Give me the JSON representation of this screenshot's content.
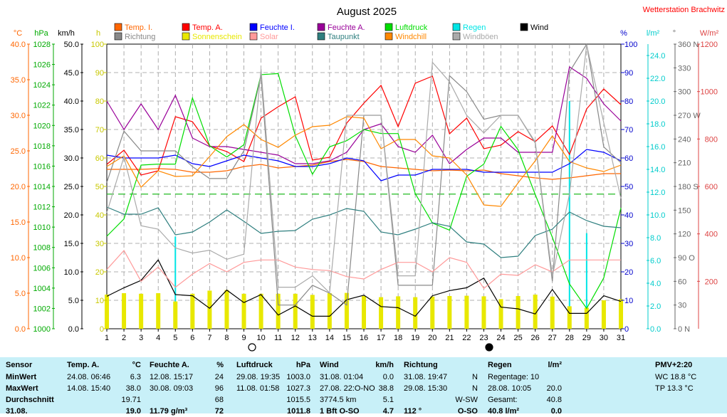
{
  "title": "August 2025",
  "station": "Wetterstation Brachwitz",
  "legend": [
    {
      "label": "Temp. I.",
      "color": "#ff6600",
      "kind": "box"
    },
    {
      "label": "Temp. A.",
      "color": "#ff0000",
      "kind": "box"
    },
    {
      "label": "Feuchte I.",
      "color": "#0000ff",
      "kind": "box"
    },
    {
      "label": "Feuchte A.",
      "color": "#990099",
      "kind": "box"
    },
    {
      "label": "Luftdruck",
      "color": "#00dd00",
      "kind": "box"
    },
    {
      "label": "Regen",
      "color": "#00e5e5",
      "kind": "box"
    },
    {
      "label": "Wind",
      "color": "#000000",
      "kind": "box"
    },
    {
      "label": "Richtung",
      "color": "#888888",
      "kind": "box"
    },
    {
      "label": "Sonnenschein",
      "color": "#e8e800",
      "kind": "box"
    },
    {
      "label": "Solar",
      "color": "#ff9999",
      "kind": "box"
    },
    {
      "label": "Taupunkt",
      "color": "#2f7f7f",
      "kind": "box"
    },
    {
      "label": "Windchill",
      "color": "#ff8800",
      "kind": "box"
    },
    {
      "label": "Windböen",
      "color": "#aaaaaa",
      "kind": "box"
    }
  ],
  "axes": {
    "temp": {
      "unit": "°C",
      "ticks": [
        "40.0",
        "35.0",
        "30.0",
        "25.0",
        "20.0",
        "15.0",
        "10.0",
        "5.0",
        "0.0"
      ],
      "color": "#ff6600",
      "min": 0,
      "max": 40
    },
    "pressure": {
      "unit": "hPa",
      "ticks": [
        "1028",
        "1026",
        "1024",
        "1022",
        "1020",
        "1018",
        "1016",
        "1014",
        "1012",
        "1010",
        "1008",
        "1006",
        "1004",
        "1002",
        "1000"
      ],
      "color": "#00aa00",
      "min": 1000,
      "max": 1028
    },
    "wind": {
      "unit": "km/h",
      "ticks": [
        "50.0",
        "45.0",
        "40.0",
        "35.0",
        "30.0",
        "25.0",
        "20.0",
        "15.0",
        "10.0",
        "5.0",
        "0.0"
      ],
      "color": "#000000",
      "min": 0,
      "max": 50
    },
    "sun": {
      "unit": "h",
      "ticks": [
        "100",
        "90",
        "80",
        "70",
        "60",
        "50",
        "40",
        "30",
        "20",
        "10",
        "0"
      ],
      "color": "#d0d000",
      "min": 0,
      "max": 100
    },
    "humidity": {
      "unit": "%",
      "ticks": [
        "100",
        "90",
        "80",
        "70",
        "60",
        "50",
        "40",
        "30",
        "20",
        "10",
        "0"
      ],
      "color": "#0000cc",
      "min": 0,
      "max": 100
    },
    "rain": {
      "unit": "l/m²",
      "ticks": [
        "24.0",
        "22.0",
        "20.0",
        "18.0",
        "16.0",
        "14.0",
        "12.0",
        "10.0",
        "8.0",
        "6.0",
        "4.0",
        "2.0",
        "0.0"
      ],
      "color": "#00cccc",
      "min": 0,
      "max": 25
    },
    "direction": {
      "unit": "°",
      "ticks": [
        "360 N",
        "330",
        "300",
        "270 W",
        "240",
        "210",
        "180 S",
        "150",
        "120",
        "90 O",
        "60",
        "30",
        "0 N"
      ],
      "color": "#666666",
      "min": 0,
      "max": 360
    },
    "solar": {
      "unit": "W/m²",
      "ticks": [
        "1200",
        "1000",
        "800",
        "600",
        "400",
        "200"
      ],
      "color": "#dd4444",
      "min": 0,
      "max": 1200
    }
  },
  "days": [
    "1",
    "2",
    "3",
    "4",
    "5",
    "6",
    "7",
    "8",
    "9",
    "10",
    "11",
    "12",
    "13",
    "14",
    "15",
    "16",
    "17",
    "18",
    "19",
    "20",
    "21",
    "22",
    "23",
    "24",
    "25",
    "26",
    "27",
    "28",
    "29",
    "30",
    "31"
  ],
  "chart_data": {
    "type": "line",
    "title": "August 2025",
    "x": [
      1,
      2,
      3,
      4,
      5,
      6,
      7,
      8,
      9,
      10,
      11,
      12,
      13,
      14,
      15,
      16,
      17,
      18,
      19,
      20,
      21,
      22,
      23,
      24,
      25,
      26,
      27,
      28,
      29,
      30,
      31
    ],
    "xlim": [
      1,
      31
    ],
    "reference_line_pressure": 1013.25,
    "series": [
      {
        "name": "Temp. I.",
        "axis": "temp",
        "color": "#ff6600",
        "values": [
          22.4,
          22.4,
          22.4,
          22.5,
          22.4,
          22.0,
          22.0,
          22.2,
          22.8,
          23.1,
          22.6,
          22.8,
          23.0,
          23.5,
          23.8,
          23.5,
          22.8,
          22.6,
          22.4,
          22.2,
          22.3,
          22.2,
          22.3,
          21.8,
          21.5,
          21.2,
          21.0,
          21.2,
          21.5,
          21.8,
          21.8
        ]
      },
      {
        "name": "Temp. A.",
        "axis": "temp",
        "color": "#ff0000",
        "values": [
          23.1,
          25.1,
          21.6,
          22.2,
          29.8,
          29.1,
          25.7,
          24.9,
          23.5,
          29.6,
          31.2,
          32.6,
          23.7,
          24.1,
          28.9,
          31.7,
          34.2,
          28.4,
          34.5,
          35.5,
          27.4,
          29.6,
          25.3,
          25.8,
          27.7,
          26.3,
          28.5,
          24.5,
          30.9,
          33.7,
          31.5
        ]
      },
      {
        "name": "Feuchte I.",
        "axis": "humidity",
        "color": "#0000ff",
        "values": [
          61,
          60,
          60,
          60,
          61,
          58,
          57,
          59,
          61,
          60,
          59,
          57,
          57,
          58,
          60,
          59,
          52,
          54,
          54,
          56,
          56,
          56,
          55,
          55,
          55,
          55,
          55,
          58,
          63,
          62,
          59
        ]
      },
      {
        "name": "Feuchte A.",
        "axis": "humidity",
        "color": "#990099",
        "values": [
          80,
          70,
          79,
          70,
          82,
          67,
          64,
          64,
          63,
          62,
          61,
          58,
          58,
          59,
          62,
          70,
          72,
          64,
          62,
          68,
          58,
          63,
          67,
          67,
          62,
          62,
          62,
          92,
          88,
          79,
          73
        ]
      },
      {
        "name": "Luftdruck",
        "axis": "pressure",
        "color": "#00dd00",
        "values": [
          1009.1,
          1010.8,
          1016.1,
          1016.2,
          1016.2,
          1022.7,
          1018.0,
          1016.9,
          1018.1,
          1025.0,
          1025.1,
          1019.0,
          1015.2,
          1017.9,
          1018.5,
          1019.6,
          1019.2,
          1019.2,
          1013.3,
          1010.4,
          1009.7,
          1015.0,
          1016.2,
          1019.9,
          1017.6,
          1013.2,
          1009.0,
          1004.4,
          1002.0,
          1005.0,
          1011.9
        ]
      },
      {
        "name": "Regen",
        "axis": "rain",
        "kind": "bar",
        "color": "#00e5e5",
        "values": [
          0,
          0,
          0,
          0,
          8.1,
          0,
          0,
          0,
          0,
          0,
          0,
          0,
          0,
          0,
          0,
          0,
          0,
          0,
          0,
          0,
          0,
          0,
          1.2,
          0,
          0,
          0,
          2.6,
          20.0,
          8.4,
          0,
          0
        ]
      },
      {
        "name": "Wind",
        "axis": "wind",
        "color": "#000000",
        "values": [
          5.7,
          7.2,
          8.5,
          12.1,
          6.0,
          5.8,
          3.6,
          6.8,
          4.6,
          6.0,
          2.4,
          4.0,
          2.2,
          2.2,
          5.1,
          5.9,
          3.9,
          3.7,
          2.2,
          5.8,
          6.7,
          7.2,
          8.9,
          3.8,
          3.5,
          2.6,
          6.9,
          2.7,
          2.7,
          5.8,
          4.8
        ]
      },
      {
        "name": "Richtung",
        "axis": "direction",
        "color": "#888888",
        "values": [
          185,
          250,
          225,
          225,
          225,
          205,
          190,
          190,
          225,
          320,
          30,
          30,
          55,
          45,
          30,
          270,
          270,
          55,
          55,
          55,
          320,
          300,
          265,
          270,
          270,
          235,
          60,
          325,
          360,
          230,
          210
        ]
      },
      {
        "name": "Sonnenschein",
        "axis": "sun",
        "kind": "bar",
        "color": "#e8e800",
        "values": [
          12.0,
          12.5,
          12.3,
          12.5,
          9.6,
          12.3,
          13.4,
          13.6,
          12.3,
          12.3,
          12.3,
          12.3,
          11.9,
          12.5,
          12.6,
          11.5,
          11.1,
          11.4,
          11.1,
          11.3,
          11.5,
          11.6,
          11.4,
          10.4,
          11.5,
          12.0,
          11.3,
          7.9,
          7.4,
          10.0,
          10.4
        ]
      },
      {
        "name": "Solar",
        "axis": "solar",
        "color": "#ff9999",
        "values": [
          250,
          330,
          200,
          260,
          175,
          230,
          275,
          240,
          280,
          290,
          290,
          260,
          250,
          245,
          220,
          210,
          250,
          280,
          280,
          240,
          300,
          280,
          170,
          230,
          225,
          270,
          240,
          290,
          290,
          290,
          290
        ]
      },
      {
        "name": "Taupunkt",
        "axis": "temp",
        "color": "#2f7f7f",
        "values": [
          17.1,
          16.1,
          16.1,
          17.0,
          13.2,
          13.6,
          15.0,
          16.7,
          15.1,
          13.4,
          13.7,
          13.8,
          15.4,
          16.0,
          16.9,
          16.5,
          13.6,
          13.2,
          14.0,
          14.9,
          14.4,
          12.2,
          11.9,
          10.0,
          10.2,
          13.1,
          14.0,
          16.4,
          15.2,
          14.4,
          14.2
        ]
      },
      {
        "name": "Windchill",
        "axis": "temp",
        "color": "#ff8800",
        "values": [
          22.8,
          24.3,
          19.9,
          22.2,
          21.4,
          21.5,
          24.2,
          27.0,
          28.7,
          26.6,
          25.5,
          27.2,
          28.4,
          28.6,
          29.8,
          29.6,
          25.3,
          26.6,
          26.6,
          24.3,
          24.0,
          21.6,
          17.4,
          17.2,
          20.5,
          23.6,
          27.1,
          23.5,
          22.6,
          22.1,
          23.0
        ]
      },
      {
        "name": "Windböen",
        "axis": "wind",
        "color": "#aaaaaa",
        "values": [
          20.4,
          30.2,
          18.1,
          17.5,
          14.2,
          13.3,
          13.8,
          12.2,
          13.1,
          45.6,
          7.3,
          7.3,
          9.3,
          6.3,
          37.5,
          37.5,
          37.5,
          9.3,
          9.3,
          46.8,
          43.4,
          37.5,
          34.4,
          37.5,
          37.5,
          32.8,
          9.2,
          23.7,
          49.9,
          36.2,
          22.9
        ]
      }
    ]
  },
  "stats": {
    "sensor": {
      "header": "Sensor",
      "rows": [
        "MinWert",
        "MaxWert",
        "Durchschnitt",
        "31.08."
      ]
    },
    "temp": {
      "header": "Temp. A.",
      "unit": "°C",
      "rows": [
        [
          "24.08.  06:46",
          "6.3"
        ],
        [
          "14.08.  15:40",
          "38.0"
        ],
        [
          "",
          "19.71"
        ],
        [
          "",
          "19.0"
        ]
      ]
    },
    "humidity": {
      "header": "Feuchte A.",
      "unit": "%",
      "rows": [
        [
          "12.08.  15:17",
          "24"
        ],
        [
          "30.08.  09:03",
          "96"
        ],
        [
          "",
          "68"
        ],
        [
          "11.79 g/m³",
          "72"
        ]
      ]
    },
    "pressure": {
      "header": "Luftdruck",
      "unit": "hPa",
      "rows": [
        [
          "29.08.  19:35",
          "1003.0"
        ],
        [
          "11.08.  01:58",
          "1027.3"
        ],
        [
          "",
          "1015.5"
        ],
        [
          "",
          "1011.8"
        ]
      ]
    },
    "wind": {
      "header": "Wind",
      "unit": "km/h",
      "rows": [
        [
          "31.08.  01:04",
          "0.0"
        ],
        [
          "27.08.  22:O-NO",
          "38.8"
        ],
        [
          "3774.5 km",
          "5.1"
        ],
        [
          "1 Bft O-SO",
          "4.7"
        ]
      ]
    },
    "direction": {
      "header": "Richtung",
      "unit": "",
      "rows": [
        [
          "31.08.  19:47",
          "N"
        ],
        [
          "29.08.  15:30",
          "N"
        ],
        [
          "",
          "W-SW"
        ],
        [
          "112 °",
          "O-SO"
        ]
      ]
    },
    "rain": {
      "header": "Regen",
      "unit": "l/m²",
      "rows": [
        [
          "Regentage: 10",
          ""
        ],
        [
          "28.08.  10:05",
          "20.0"
        ],
        [
          "Gesamt:",
          "40.8"
        ],
        [
          "40.8 l/m²",
          "0.0"
        ]
      ]
    },
    "pmv": {
      "header": "PMV+2:20",
      "rows": [
        "WC 18.8 °C",
        "TP 13.3 °C"
      ]
    }
  }
}
